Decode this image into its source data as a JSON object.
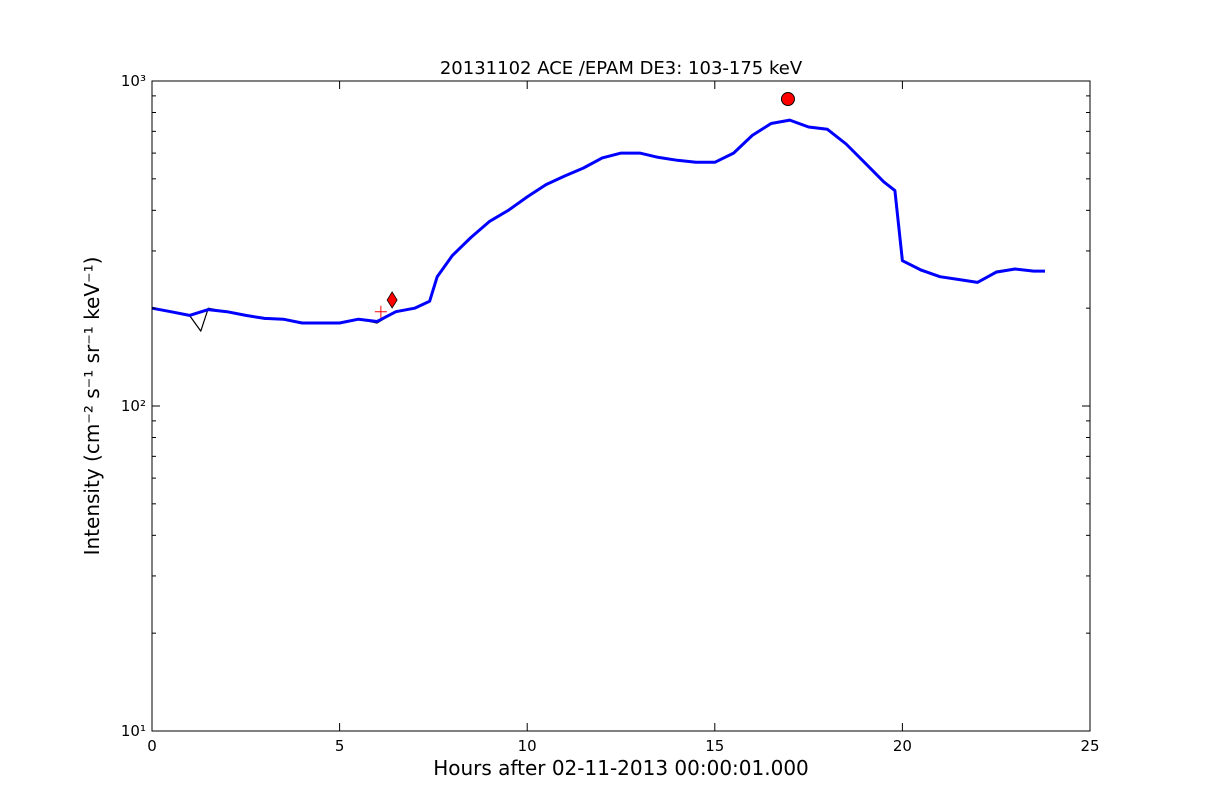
{
  "chart_data": {
    "type": "line",
    "title": "20131102 ACE /EPAM DE3: 103-175 keV",
    "xlabel": "Hours after 02-11-2013 00:00:01.000",
    "ylabel": "Intensity (cm⁻² s⁻¹ sr⁻¹ keV⁻¹)",
    "xlim": [
      0,
      25
    ],
    "ylim": [
      10,
      1000
    ],
    "yscale": "log",
    "xticks": [
      0,
      5,
      10,
      15,
      20,
      25
    ],
    "xtick_labels": [
      "0",
      "5",
      "10",
      "15",
      "20",
      "25"
    ],
    "yticks": [
      10,
      100,
      1000
    ],
    "ytick_labels": [
      "10¹",
      "10²",
      "10³"
    ],
    "grid": false,
    "legend": "none",
    "series": [
      {
        "color": "#000000",
        "x": [
          0.0,
          0.5,
          1.0,
          1.3,
          1.5,
          2.0,
          2.5,
          3.0,
          3.5,
          4.0,
          4.5,
          5.0,
          5.5,
          6.0,
          6.5,
          7.0,
          7.4,
          7.6,
          8.0,
          8.5,
          9.0,
          9.5,
          10.0,
          10.5,
          11.0,
          11.5,
          12.0,
          12.5,
          13.0,
          13.5,
          14.0,
          14.5,
          15.0,
          15.5,
          16.0,
          16.5,
          17.0,
          17.5,
          18.0,
          18.5,
          19.0,
          19.5,
          19.8,
          20.0,
          20.5,
          21.0,
          21.5,
          22.0,
          22.5,
          23.0,
          23.5,
          23.8
        ],
        "values": [
          200,
          195,
          190,
          170,
          200,
          195,
          190,
          185,
          185,
          180,
          180,
          180,
          185,
          180,
          195,
          200,
          210,
          250,
          290,
          330,
          370,
          400,
          440,
          480,
          510,
          540,
          580,
          600,
          600,
          580,
          570,
          560,
          560,
          600,
          680,
          740,
          760,
          720,
          710,
          640,
          560,
          490,
          460,
          280,
          260,
          250,
          245,
          240,
          260,
          265,
          260,
          260
        ]
      },
      {
        "color": "#0000ff",
        "x": [
          0.0,
          0.5,
          1.0,
          1.5,
          2.0,
          2.5,
          3.0,
          3.5,
          4.0,
          4.5,
          5.0,
          5.5,
          6.0,
          6.5,
          7.0,
          7.4,
          7.6,
          8.0,
          8.5,
          9.0,
          9.5,
          10.0,
          10.5,
          11.0,
          11.5,
          12.0,
          12.5,
          13.0,
          13.5,
          14.0,
          14.5,
          15.0,
          15.5,
          16.0,
          16.5,
          17.0,
          17.5,
          18.0,
          18.5,
          19.0,
          19.5,
          19.8,
          20.0,
          20.5,
          21.0,
          21.5,
          22.0,
          22.5,
          23.0,
          23.5,
          23.8
        ],
        "values": [
          200,
          195,
          190,
          198,
          195,
          190,
          186,
          185,
          180,
          180,
          180,
          185,
          182,
          195,
          200,
          210,
          250,
          290,
          330,
          370,
          400,
          440,
          480,
          510,
          540,
          580,
          600,
          600,
          582,
          570,
          562,
          562,
          600,
          680,
          740,
          758,
          722,
          710,
          640,
          560,
          490,
          460,
          280,
          262,
          250,
          245,
          240,
          258,
          264,
          260,
          260
        ]
      }
    ],
    "markers": [
      {
        "shape": "circle",
        "color": "#ff0000",
        "x": 16.95,
        "y": 880
      },
      {
        "shape": "diamond",
        "color": "#ff0000",
        "x": 6.4,
        "y": 212
      },
      {
        "shape": "plus",
        "color": "#ff0000",
        "x": 6.1,
        "y": 195
      }
    ]
  }
}
